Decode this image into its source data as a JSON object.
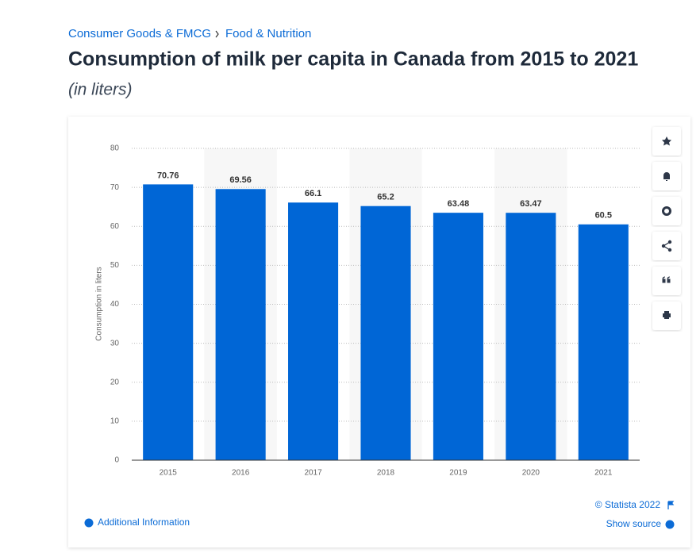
{
  "breadcrumb": [
    "Consumer Goods & FMCG",
    "Food & Nutrition"
  ],
  "chart_data": {
    "type": "bar",
    "title": "Consumption of milk per capita in Canada from 2015 to 2021",
    "subtitle": "(in liters)",
    "y_label": "Consumption in liters",
    "categories": [
      "2015",
      "2016",
      "2017",
      "2018",
      "2019",
      "2020",
      "2021"
    ],
    "values": [
      70.76,
      69.56,
      66.1,
      65.2,
      63.48,
      63.47,
      60.5
    ],
    "color": "#0066d6",
    "ylim": [
      0,
      80
    ],
    "yticks": [
      0,
      10,
      20,
      30,
      40,
      50,
      60,
      70,
      80
    ],
    "grid": true
  },
  "footer": {
    "copyright": "© Statista 2022",
    "source": "Show source",
    "info": "Additional Information"
  }
}
